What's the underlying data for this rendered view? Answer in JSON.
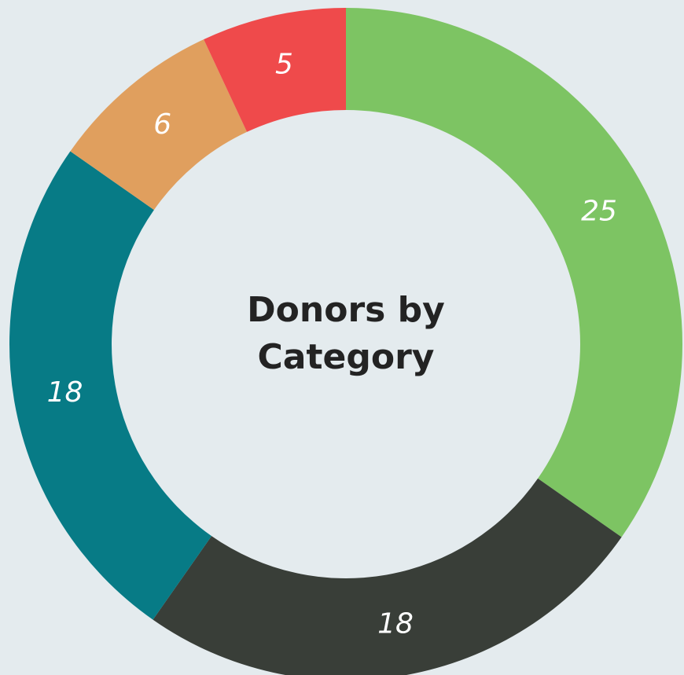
{
  "chart_data": {
    "type": "donut",
    "title": "Donors by Category",
    "values": [
      25,
      18,
      18,
      6,
      5
    ],
    "colors": [
      "#7dc463",
      "#393e38",
      "#077b86",
      "#e09f5e",
      "#ef4a4b"
    ]
  }
}
